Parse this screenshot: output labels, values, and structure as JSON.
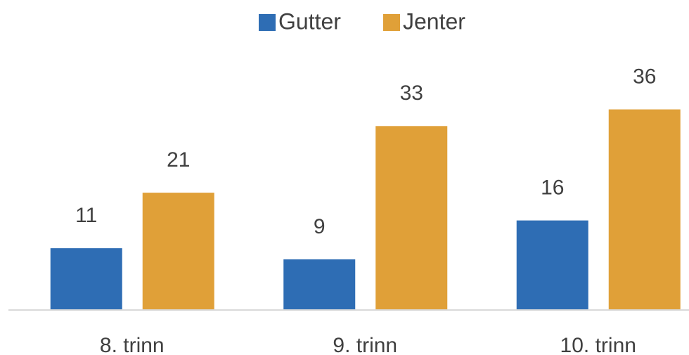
{
  "chart_data": {
    "type": "bar",
    "categories": [
      "8. trinn",
      "9. trinn",
      "10. trinn"
    ],
    "series": [
      {
        "name": "Gutter",
        "color": "#2e6db4",
        "values": [
          11,
          9,
          16
        ]
      },
      {
        "name": "Jenter",
        "color": "#e0a038",
        "values": [
          21,
          33,
          36
        ]
      }
    ],
    "legend": "top"
  }
}
